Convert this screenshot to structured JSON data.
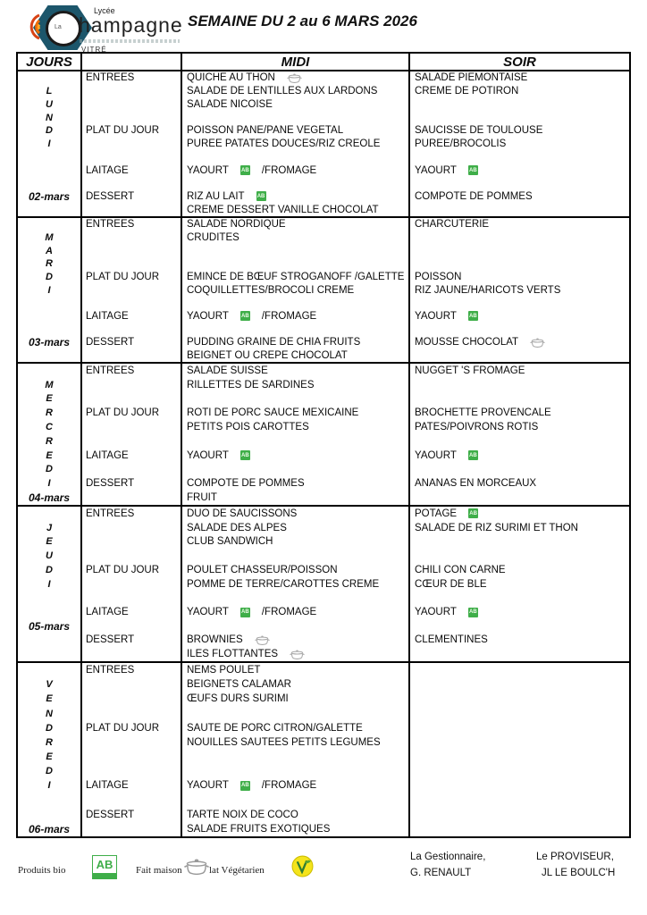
{
  "header": {
    "logo": {
      "lycee": "Lycée",
      "la": "La",
      "name": "hampagne",
      "city": "VITRÉ"
    },
    "title": "SEMAINE DU 2 au 6 MARS 2026"
  },
  "table": {
    "columns": {
      "jours": "JOURS",
      "cat": "",
      "midi": "MIDI",
      "soir": "SOIR"
    },
    "icons": {
      "bio_text": "AB"
    },
    "days": [
      {
        "name": "LUNDI",
        "date": "02-mars",
        "lines": [
          {
            "c": "ENTREES",
            "m": [
              {
                "t": "QUICHE AU THON"
              },
              {
                "i": "pot"
              }
            ],
            "s": [
              {
                "t": "SALADE PIEMONTAISE"
              }
            ]
          },
          {
            "d": "L",
            "m": [
              {
                "t": "SALADE DE LENTILLES AUX LARDONS"
              }
            ],
            "s": [
              {
                "t": "CREME DE POTIRON"
              }
            ]
          },
          {
            "d": "U",
            "m": [
              {
                "t": "SALADE NICOISE"
              }
            ]
          },
          {
            "d": "N"
          },
          {
            "d": "D",
            "c": "PLAT DU JOUR",
            "m": [
              {
                "t": "POISSON PANE/PANE VEGETAL"
              }
            ],
            "s": [
              {
                "t": "SAUCISSE DE TOULOUSE"
              }
            ]
          },
          {
            "d": "I",
            "m": [
              {
                "t": "PUREE PATATES DOUCES/RIZ CREOLE"
              }
            ],
            "s": [
              {
                "t": "PUREE/BROCOLIS"
              }
            ]
          },
          {},
          {
            "c": "LAITAGE",
            "m": [
              {
                "t": "YAOURT"
              },
              {
                "i": "bio"
              },
              {
                "t": "/FROMAGE"
              }
            ],
            "s": [
              {
                "t": "YAOURT"
              },
              {
                "i": "bio"
              }
            ]
          },
          {},
          {
            "d": "02-mars",
            "dt": true,
            "c": "DESSERT",
            "m": [
              {
                "t": "RIZ AU LAIT"
              },
              {
                "i": "bio"
              }
            ],
            "s": [
              {
                "t": "COMPOTE DE POMMES"
              }
            ]
          },
          {
            "m": [
              {
                "t": "CREME DESSERT VANILLE CHOCOLAT"
              }
            ]
          }
        ]
      },
      {
        "name": "MARDI",
        "date": "03-mars",
        "lines": [
          {
            "c": "ENTREES",
            "m": [
              {
                "t": "SALADE NORDIQUE"
              }
            ],
            "s": [
              {
                "t": "CHARCUTERIE"
              }
            ]
          },
          {
            "d": "M",
            "m": [
              {
                "t": "CRUDITES"
              }
            ]
          },
          {
            "d": "A"
          },
          {
            "d": "R"
          },
          {
            "d": "D",
            "c": "PLAT DU JOUR",
            "m": [
              {
                "t": "EMINCE DE BŒUF STROGANOFF /GALETTE"
              }
            ],
            "s": [
              {
                "t": "POISSON"
              }
            ]
          },
          {
            "d": "I",
            "m": [
              {
                "t": "COQUILLETTES/BROCOLI CREME"
              }
            ],
            "s": [
              {
                "t": "RIZ JAUNE/HARICOTS VERTS"
              }
            ]
          },
          {},
          {
            "c": "LAITAGE",
            "m": [
              {
                "t": "YAOURT"
              },
              {
                "i": "bio"
              },
              {
                "t": "/FROMAGE"
              }
            ],
            "s": [
              {
                "t": "YAOURT"
              },
              {
                "i": "bio"
              }
            ]
          },
          {},
          {
            "d": "03-mars",
            "dt": true,
            "c": "DESSERT",
            "m": [
              {
                "t": "PUDDING GRAINE DE CHIA FRUITS"
              }
            ],
            "s": [
              {
                "t": "MOUSSE CHOCOLAT"
              },
              {
                "i": "pot"
              }
            ]
          },
          {
            "m": [
              {
                "t": "BEIGNET OU CREPE CHOCOLAT"
              }
            ]
          }
        ]
      },
      {
        "name": "MERCREDI",
        "date": "04-mars",
        "lines": [
          {
            "c": "ENTREES",
            "m": [
              {
                "t": "SALADE SUISSE"
              }
            ],
            "s": [
              {
                "t": "NUGGET 'S FROMAGE"
              }
            ]
          },
          {
            "d": "M",
            "m": [
              {
                "t": "RILLETTES DE SARDINES"
              }
            ]
          },
          {
            "d": "E"
          },
          {
            "d": "R",
            "c": "PLAT DU JOUR",
            "m": [
              {
                "t": "ROTI DE PORC SAUCE MEXICAINE"
              }
            ],
            "s": [
              {
                "t": "BROCHETTE PROVENCALE"
              }
            ]
          },
          {
            "d": "C",
            "m": [
              {
                "t": "PETITS POIS CAROTTES"
              }
            ],
            "s": [
              {
                "t": "PATES/POIVRONS ROTIS"
              }
            ]
          },
          {
            "d": "R"
          },
          {
            "d": "E",
            "c": "LAITAGE",
            "m": [
              {
                "t": "YAOURT"
              },
              {
                "i": "bio"
              }
            ],
            "s": [
              {
                "t": "YAOURT"
              },
              {
                "i": "bio"
              }
            ]
          },
          {
            "d": "D"
          },
          {
            "d": "I",
            "c": "DESSERT",
            "m": [
              {
                "t": "COMPOTE DE POMMES"
              }
            ],
            "s": [
              {
                "t": "ANANAS EN MORCEAUX"
              }
            ]
          },
          {
            "d": "04-mars",
            "dt": true,
            "m": [
              {
                "t": "FRUIT"
              }
            ]
          }
        ]
      },
      {
        "name": "JEUDI",
        "date": "05-mars",
        "lines": [
          {
            "c": "ENTREES",
            "m": [
              {
                "t": "DUO DE SAUCISSONS"
              }
            ],
            "s": [
              {
                "t": "POTAGE"
              },
              {
                "i": "bio"
              }
            ]
          },
          {
            "d": "J",
            "m": [
              {
                "t": "SALADE DES ALPES"
              }
            ],
            "s": [
              {
                "t": "SALADE DE RIZ SURIMI ET THON"
              }
            ]
          },
          {
            "d": "E",
            "m": [
              {
                "t": "CLUB SANDWICH"
              }
            ]
          },
          {
            "d": "U"
          },
          {
            "d": "D",
            "c": "PLAT DU JOUR",
            "m": [
              {
                "t": "POULET CHASSEUR/POISSON"
              }
            ],
            "s": [
              {
                "t": "CHILI CON CARNE"
              }
            ]
          },
          {
            "d": "I",
            "m": [
              {
                "t": "POMME DE TERRE/CAROTTES CREME"
              }
            ],
            "s": [
              {
                "t": "CŒUR DE BLE"
              }
            ]
          },
          {},
          {
            "c": "LAITAGE",
            "m": [
              {
                "t": "YAOURT"
              },
              {
                "i": "bio"
              },
              {
                "t": "/FROMAGE"
              }
            ],
            "s": [
              {
                "t": "YAOURT"
              },
              {
                "i": "bio"
              }
            ]
          },
          {
            "d": "05-mars",
            "dt": true
          },
          {
            "c": "DESSERT",
            "m": [
              {
                "t": "BROWNIES"
              },
              {
                "i": "pot"
              }
            ],
            "s": [
              {
                "t": "CLEMENTINES"
              }
            ]
          },
          {
            "m": [
              {
                "t": "ILES FLOTTANTES"
              },
              {
                "i": "pot"
              }
            ]
          }
        ]
      },
      {
        "name": "VENDREDI",
        "date": "06-mars",
        "lines": [
          {
            "c": "ENTREES",
            "m": [
              {
                "t": "NEMS POULET"
              }
            ]
          },
          {
            "d": "V",
            "m": [
              {
                "t": "BEIGNETS CALAMAR"
              }
            ]
          },
          {
            "d": "E",
            "m": [
              {
                "t": "ŒUFS DURS SURIMI"
              }
            ]
          },
          {
            "d": "N"
          },
          {
            "d": "D",
            "c": "PLAT DU JOUR",
            "m": [
              {
                "t": "SAUTE DE PORC CITRON/GALETTE"
              }
            ]
          },
          {
            "d": "R",
            "m": [
              {
                "t": "NOUILLES SAUTEES PETITS LEGUMES"
              }
            ]
          },
          {
            "d": "E"
          },
          {
            "d": "D"
          },
          {
            "d": "I",
            "c": "LAITAGE",
            "m": [
              {
                "t": "YAOURT"
              },
              {
                "i": "bio"
              },
              {
                "t": "/FROMAGE"
              }
            ]
          },
          {},
          {
            "c": "DESSERT",
            "m": [
              {
                "t": "TARTE NOIX DE COCO"
              }
            ]
          },
          {
            "d": "06-mars",
            "dt": true,
            "m": [
              {
                "t": "SALADE FRUITS EXOTIQUES"
              }
            ]
          }
        ]
      }
    ]
  },
  "footer": {
    "legend": {
      "produits_bio": "Produits bio",
      "ab_text": "AB",
      "fait_maison": "Fait maison",
      "plat_vegetarien": "lat Végétarien"
    },
    "signatures": {
      "gestionnaire_title": "La Gestionnaire,",
      "gestionnaire_name": "G. RENAULT",
      "proviseur_title": "Le PROVISEUR,",
      "proviseur_name": "JL LE BOULC'H"
    }
  },
  "colors": {
    "bio_green": "#3fae49",
    "hexagon_blue": "#1c566b",
    "veg_yellow": "#f4e41c",
    "pot_gray": "#9a9a9a"
  }
}
